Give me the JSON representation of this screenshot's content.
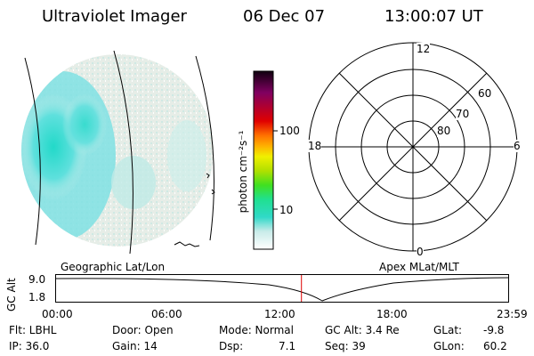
{
  "header": {
    "title": "Ultraviolet Imager",
    "date": "06 Dec 07",
    "time": "13:00:07 UT"
  },
  "colorbar": {
    "unit_label": "photon cm⁻²s⁻¹",
    "tick_labels": [
      "100",
      "10"
    ]
  },
  "polar_plot": {
    "mlt_labels": [
      "12",
      "18",
      "6",
      "0"
    ],
    "lat_labels": [
      "60",
      "70",
      "80"
    ]
  },
  "panel_labels": {
    "left": "Geographic Lat/Lon",
    "right": "Apex MLat/MLT"
  },
  "altitude_plot": {
    "ylabel": "GC Alt",
    "yticks": [
      "9.0",
      "1.8"
    ],
    "xticks": [
      "00:00",
      "06:00",
      "12:00",
      "18:00",
      "23:59"
    ],
    "marker_time_hours": 13.0
  },
  "status": {
    "flt": "Flt: LBHL",
    "ip": "IP: 36.0",
    "door": "Door: Open",
    "gain": "Gain: 14",
    "mode": "Mode: Normal",
    "dsp": "Dsp:",
    "dsp_value": "7.1",
    "gc_alt": "GC Alt: 3.4 Re",
    "seq": "Seq: 39",
    "glat": "GLat:",
    "glat_value": "-9.8",
    "glon": "GLon:",
    "glon_value": "60.2"
  },
  "colors": {
    "marker": "#dd0000",
    "aurora_low": "#e3ece6",
    "aurora_mid": "#7fe0e3",
    "aurora_high": "#24d8cc"
  }
}
